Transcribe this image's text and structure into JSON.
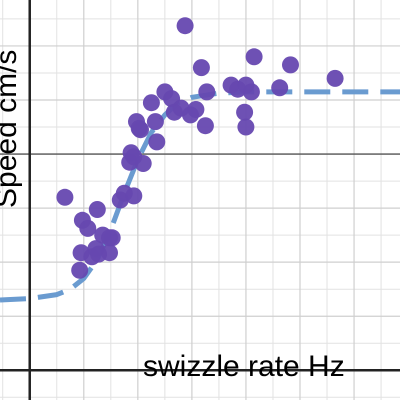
{
  "chart_data": {
    "type": "scatter",
    "xlabel": "swizzle rate Hz",
    "ylabel": "Speed cm/s",
    "grid": true,
    "xlim": [
      -1.1,
      13.7
    ],
    "ylim": [
      -1.1,
      13.7
    ],
    "axis_positions": {
      "x_axis_at_y": 0,
      "y_axis_at_x": 0
    },
    "series": [
      {
        "kind": "points",
        "color": "#6648b0",
        "points": [
          [
            1.3,
            6.4
          ],
          [
            1.85,
            3.7
          ],
          [
            1.9,
            4.35
          ],
          [
            1.95,
            5.55
          ],
          [
            2.15,
            5.25
          ],
          [
            2.3,
            4.2
          ],
          [
            2.45,
            4.5
          ],
          [
            2.5,
            5.95
          ],
          [
            2.55,
            4.3
          ],
          [
            2.7,
            5.0
          ],
          [
            2.95,
            4.35
          ],
          [
            2.95,
            4.9
          ],
          [
            3.05,
            4.9
          ],
          [
            3.35,
            6.3
          ],
          [
            3.5,
            6.55
          ],
          [
            3.7,
            7.7
          ],
          [
            3.75,
            8.05
          ],
          [
            3.85,
            7.9
          ],
          [
            3.85,
            6.45
          ],
          [
            3.95,
            9.2
          ],
          [
            4.05,
            8.95
          ],
          [
            4.1,
            8.9
          ],
          [
            4.2,
            7.65
          ],
          [
            4.5,
            9.9
          ],
          [
            4.65,
            9.2
          ],
          [
            4.7,
            8.45
          ],
          [
            5.0,
            10.3
          ],
          [
            5.25,
            10.05
          ],
          [
            5.35,
            9.55
          ],
          [
            5.6,
            9.7
          ],
          [
            5.95,
            9.45
          ],
          [
            6.15,
            9.65
          ],
          [
            6.55,
            10.3
          ],
          [
            6.5,
            9.05
          ],
          [
            6.35,
            11.2
          ],
          [
            7.45,
            10.55
          ],
          [
            7.7,
            10.4
          ],
          [
            7.95,
            9.55
          ],
          [
            8.0,
            9.0
          ],
          [
            8.2,
            10.3
          ],
          [
            8.3,
            11.6
          ],
          [
            9.25,
            10.45
          ],
          [
            9.65,
            11.3
          ],
          [
            11.3,
            10.8
          ],
          [
            5.75,
            12.75
          ],
          [
            8.0,
            10.55
          ]
        ]
      },
      {
        "kind": "curve",
        "style": "dashed",
        "color": "#6a9bd0",
        "x": [
          -1.1,
          0,
          1.0,
          1.5,
          2.0,
          2.5,
          3.0,
          3.5,
          4.0,
          4.5,
          5.0,
          5.5,
          6.0,
          7.0,
          8.0,
          10.0,
          13.7
        ],
        "y": [
          2.6,
          2.65,
          2.8,
          3.0,
          3.4,
          4.1,
          5.2,
          6.55,
          7.8,
          8.8,
          9.45,
          9.9,
          10.1,
          10.25,
          10.3,
          10.3,
          10.3
        ]
      }
    ]
  }
}
